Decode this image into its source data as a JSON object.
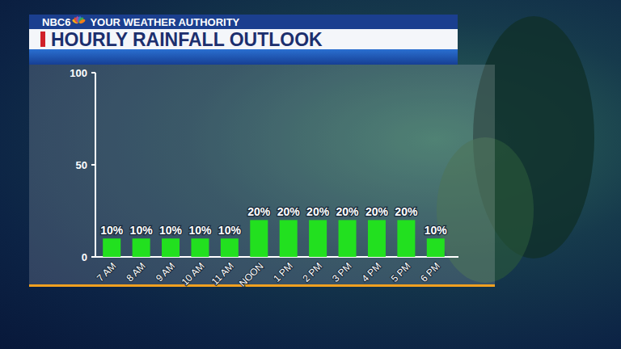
{
  "chart_data": {
    "type": "bar",
    "title": "HOURLY RAINFALL OUTLOOK",
    "annotations": [
      "NBC6",
      "YOUR WEATHER AUTHORITY"
    ],
    "categories": [
      "7 AM",
      "8 AM",
      "9 AM",
      "10 AM",
      "11 AM",
      "NOON",
      "1 PM",
      "2 PM",
      "3 PM",
      "4 PM",
      "5 PM",
      "6 PM"
    ],
    "values": [
      10,
      10,
      10,
      10,
      10,
      20,
      20,
      20,
      20,
      20,
      20,
      10
    ],
    "value_labels": [
      "10%",
      "10%",
      "10%",
      "10%",
      "10%",
      "20%",
      "20%",
      "20%",
      "20%",
      "20%",
      "20%",
      "10%"
    ],
    "data_labels": true,
    "color": "#22e01f",
    "ylim": [
      0,
      100
    ],
    "yticks": [
      0,
      50,
      100
    ],
    "grid": false
  }
}
